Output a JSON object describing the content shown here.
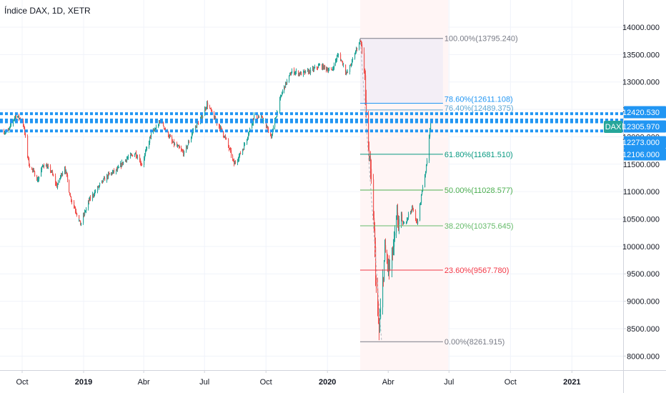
{
  "header": {
    "title": "Índice DAX, 1D, XETR"
  },
  "chart_data": {
    "type": "candlestick",
    "symbol": "DAX",
    "interval": "1D",
    "exchange": "XETR",
    "x_ticks": [
      "Oct",
      "2019",
      "Abr",
      "Jul",
      "Oct",
      "2020",
      "Abr",
      "Jul",
      "Oct",
      "2021"
    ],
    "x_tick_bold": [
      false,
      true,
      false,
      false,
      false,
      true,
      false,
      false,
      false,
      true
    ],
    "y_ticks": [
      "14000.000",
      "13500.000",
      "13000.000",
      "12500.000",
      "12000.000",
      "11500.000",
      "11000.000",
      "10500.000",
      "10000.000",
      "9500.000",
      "9000.000",
      "8500.000",
      "8000.000"
    ],
    "ylim": [
      7800,
      14250
    ],
    "price_tags": [
      {
        "label": "12420.530",
        "value": 12420.53,
        "color": "#2196f3"
      },
      {
        "label": "12305.970",
        "value": 12305.97,
        "color": "#2196f3"
      },
      {
        "label": "12273.000",
        "value": 12273.0,
        "color": "#2196f3"
      },
      {
        "label": "12106.000",
        "value": 12106.0,
        "color": "#2196f3"
      }
    ],
    "symbol_tag": {
      "label": "DAX",
      "value": 12306,
      "color": "#26a69a"
    },
    "support_resistance_lines": [
      12420.53,
      12305.97,
      12273.0,
      12106.0
    ],
    "fibonacci": {
      "high": 13795.24,
      "low": 8261.915,
      "levels": [
        {
          "label": "100.00%(13795.240)",
          "value": 13795.24,
          "color": "#787b86"
        },
        {
          "label": "78.60%(12611.108)",
          "value": 12611.108,
          "color": "#2196f3"
        },
        {
          "label": "76.40%(12489.375)",
          "value": 12489.375,
          "color": "#5fa8d3"
        },
        {
          "label": "61.80%(11681.510)",
          "value": 11681.51,
          "color": "#089981"
        },
        {
          "label": "50.00%(11028.577)",
          "value": 11028.577,
          "color": "#4caf50"
        },
        {
          "label": "38.20%(10375.645)",
          "value": 10375.645,
          "color": "#66bb6a"
        },
        {
          "label": "23.60%(9567.780)",
          "value": 9567.78,
          "color": "#f23645"
        },
        {
          "label": "0.00%(8261.915)",
          "value": 8261.915,
          "color": "#787b86"
        }
      ]
    },
    "price_path": [
      [
        "2018-09-10",
        12100
      ],
      [
        "2018-09-20",
        12400
      ],
      [
        "2018-10-01",
        12300
      ],
      [
        "2018-10-11",
        11500
      ],
      [
        "2018-10-24",
        11200
      ],
      [
        "2018-11-01",
        11500
      ],
      [
        "2018-11-12",
        11400
      ],
      [
        "2018-11-21",
        11100
      ],
      [
        "2018-12-03",
        11450
      ],
      [
        "2018-12-12",
        10900
      ],
      [
        "2018-12-27",
        10400
      ],
      [
        "2019-01-07",
        10800
      ],
      [
        "2019-01-23",
        11100
      ],
      [
        "2019-02-06",
        11300
      ],
      [
        "2019-02-20",
        11400
      ],
      [
        "2019-03-05",
        11600
      ],
      [
        "2019-03-19",
        11700
      ],
      [
        "2019-03-29",
        11500
      ],
      [
        "2019-04-10",
        12000
      ],
      [
        "2019-04-26",
        12300
      ],
      [
        "2019-05-13",
        11900
      ],
      [
        "2019-05-31",
        11700
      ],
      [
        "2019-06-13",
        12100
      ],
      [
        "2019-06-28",
        12400
      ],
      [
        "2019-07-04",
        12600
      ],
      [
        "2019-07-17",
        12300
      ],
      [
        "2019-07-31",
        12000
      ],
      [
        "2019-08-14",
        11500
      ],
      [
        "2019-08-28",
        11800
      ],
      [
        "2019-09-13",
        12400
      ],
      [
        "2019-09-27",
        12300
      ],
      [
        "2019-10-08",
        12000
      ],
      [
        "2019-10-24",
        12800
      ],
      [
        "2019-11-08",
        13200
      ],
      [
        "2019-11-22",
        13150
      ],
      [
        "2019-12-06",
        13200
      ],
      [
        "2019-12-20",
        13300
      ],
      [
        "2020-01-06",
        13200
      ],
      [
        "2020-01-17",
        13500
      ],
      [
        "2020-01-30",
        13150
      ],
      [
        "2020-02-10",
        13500
      ],
      [
        "2020-02-19",
        13780
      ],
      [
        "2020-02-25",
        13100
      ],
      [
        "2020-03-02",
        11800
      ],
      [
        "2020-03-09",
        10600
      ],
      [
        "2020-03-13",
        9200
      ],
      [
        "2020-03-18",
        8440
      ],
      [
        "2020-03-26",
        9900
      ],
      [
        "2020-04-03",
        9550
      ],
      [
        "2020-04-14",
        10500
      ],
      [
        "2020-04-24",
        10400
      ],
      [
        "2020-05-06",
        10700
      ],
      [
        "2020-05-14",
        10400
      ],
      [
        "2020-05-22",
        11100
      ],
      [
        "2020-05-29",
        11600
      ],
      [
        "2020-06-03",
        12300
      ]
    ]
  }
}
